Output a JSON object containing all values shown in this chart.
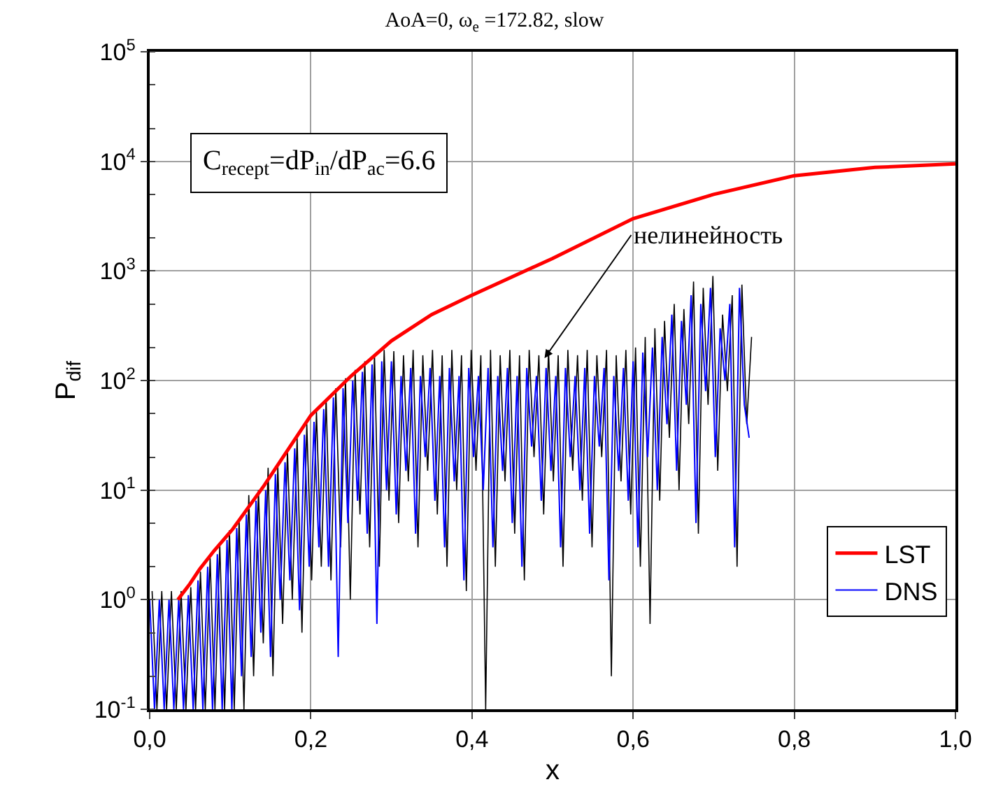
{
  "chart_data": {
    "type": "line",
    "title": "AoA=0, ω$_{e}$ =172.82, slow",
    "xlabel": "x",
    "ylabel": "P$_{dif}$",
    "log": "y",
    "grid": true,
    "legend": "bottom right",
    "xlim": [
      0,
      1
    ],
    "xticks": [
      {
        "value": 0,
        "label": "0,0"
      },
      {
        "value": 0.2,
        "label": "0,2"
      },
      {
        "value": 0.4,
        "label": "0,4"
      },
      {
        "value": 0.6,
        "label": "0,6"
      },
      {
        "value": 0.8,
        "label": "0,8"
      },
      {
        "value": 1,
        "label": "1,0"
      }
    ],
    "ylim": [
      0.1,
      100000
    ],
    "yticks": [
      {
        "value": 0.1,
        "label": "10$^{-1}$"
      },
      {
        "value": 1,
        "label": "10$^{0}$"
      },
      {
        "value": 10,
        "label": "10$^{1}$"
      },
      {
        "value": 100,
        "label": "10$^{2}$"
      },
      {
        "value": 1000,
        "label": "10$^{3}$"
      },
      {
        "value": 10000,
        "label": "10$^{4}$"
      },
      {
        "value": 100000,
        "label": "10$^{5}$"
      }
    ],
    "annotations": [
      "C$_{recept}$=dP$_{in}$/dP$_{ac}$=6.6",
      {
        "text": "нелинейность",
        "x": 0.49,
        "y": 160
      }
    ],
    "series": [
      {
        "color": "#000000",
        "x": [
          0.003,
          0.009,
          0.015,
          0.021,
          0.027,
          0.033,
          0.039,
          0.045,
          0.051,
          0.057,
          0.063,
          0.069,
          0.075,
          0.081,
          0.087,
          0.093,
          0.099,
          0.105,
          0.111,
          0.117,
          0.123,
          0.129,
          0.135,
          0.141,
          0.147,
          0.153,
          0.159,
          0.165,
          0.171,
          0.177,
          0.183,
          0.189,
          0.195,
          0.201,
          0.207,
          0.213,
          0.219,
          0.225,
          0.231,
          0.237,
          0.243,
          0.249,
          0.255,
          0.261,
          0.267,
          0.273,
          0.279,
          0.285,
          0.291,
          0.297,
          0.303,
          0.309,
          0.315,
          0.321,
          0.327,
          0.333,
          0.339,
          0.345,
          0.351,
          0.357,
          0.363,
          0.369,
          0.375,
          0.381,
          0.387,
          0.393,
          0.399,
          0.405,
          0.411,
          0.417,
          0.423,
          0.429,
          0.435,
          0.441,
          0.447,
          0.453,
          0.459,
          0.465,
          0.471,
          0.477,
          0.483,
          0.489,
          0.495,
          0.501,
          0.507,
          0.513,
          0.519,
          0.525,
          0.531,
          0.537,
          0.543,
          0.549,
          0.555,
          0.561,
          0.567,
          0.573,
          0.579,
          0.585,
          0.591,
          0.597,
          0.603,
          0.609,
          0.615,
          0.621,
          0.627,
          0.633,
          0.639,
          0.645,
          0.651,
          0.657,
          0.663,
          0.669,
          0.675,
          0.681,
          0.687,
          0.693,
          0.699,
          0.705,
          0.711,
          0.717,
          0.723,
          0.729,
          0.735,
          0.741,
          0.747
        ],
        "values": [
          1.2,
          0.1,
          1.2,
          0.1,
          1.2,
          0.1,
          1.2,
          0.1,
          1.3,
          0.1,
          1.8,
          0.1,
          2.4,
          0.1,
          3.2,
          0.1,
          4.3,
          0.1,
          5.5,
          0.1,
          9,
          0.2,
          10,
          0.4,
          16,
          0.2,
          17,
          0.6,
          23,
          1,
          30,
          0.5,
          40,
          1.5,
          52,
          2,
          68,
          1.5,
          85,
          3,
          105,
          1,
          125,
          6,
          150,
          3,
          175,
          2,
          190,
          8,
          185,
          5,
          170,
          12,
          190,
          3,
          170,
          15,
          190,
          6,
          170,
          2,
          190,
          10,
          170,
          1.2,
          190,
          15,
          170,
          0.1,
          190,
          2,
          170,
          12,
          190,
          4,
          170,
          1.5,
          190,
          20,
          170,
          6,
          190,
          12,
          170,
          2,
          190,
          15,
          170,
          8,
          190,
          3,
          170,
          20,
          190,
          0.2,
          170,
          12,
          190,
          6,
          200,
          2,
          250,
          0.6,
          300,
          8,
          350,
          30,
          500,
          10,
          450,
          40,
          800,
          4,
          700,
          60,
          900,
          15,
          400,
          80,
          600,
          2,
          750,
          40,
          250
        ]
      },
      {
        "name": "DNS",
        "color": "#0000ff",
        "x": [
          0,
          0.006,
          0.012,
          0.018,
          0.024,
          0.03,
          0.036,
          0.042,
          0.048,
          0.054,
          0.06,
          0.066,
          0.072,
          0.078,
          0.084,
          0.09,
          0.096,
          0.102,
          0.108,
          0.114,
          0.12,
          0.126,
          0.132,
          0.138,
          0.144,
          0.15,
          0.156,
          0.162,
          0.168,
          0.174,
          0.18,
          0.186,
          0.192,
          0.198,
          0.204,
          0.21,
          0.216,
          0.222,
          0.228,
          0.234,
          0.24,
          0.246,
          0.252,
          0.258,
          0.264,
          0.27,
          0.276,
          0.282,
          0.288,
          0.294,
          0.3,
          0.306,
          0.312,
          0.318,
          0.324,
          0.33,
          0.336,
          0.342,
          0.348,
          0.354,
          0.36,
          0.366,
          0.372,
          0.378,
          0.384,
          0.39,
          0.396,
          0.402,
          0.408,
          0.414,
          0.42,
          0.426,
          0.432,
          0.438,
          0.444,
          0.45,
          0.456,
          0.462,
          0.468,
          0.474,
          0.48,
          0.486,
          0.492,
          0.498,
          0.504,
          0.51,
          0.516,
          0.522,
          0.528,
          0.534,
          0.54,
          0.546,
          0.552,
          0.558,
          0.564,
          0.57,
          0.576,
          0.582,
          0.588,
          0.594,
          0.6,
          0.606,
          0.612,
          0.618,
          0.624,
          0.63,
          0.636,
          0.642,
          0.648,
          0.654,
          0.66,
          0.666,
          0.672,
          0.678,
          0.684,
          0.69,
          0.696,
          0.702,
          0.708,
          0.714,
          0.72,
          0.726,
          0.732,
          0.738,
          0.744
        ],
        "values": [
          1.0,
          0.1,
          1.0,
          0.1,
          1.0,
          0.1,
          1.0,
          0.1,
          1.1,
          0.1,
          1.5,
          0.1,
          2.0,
          0.1,
          2.6,
          0.1,
          3.5,
          0.1,
          4.5,
          0.2,
          6,
          0.3,
          8,
          0.5,
          10,
          0.3,
          14,
          1,
          18,
          1.5,
          24,
          0.8,
          32,
          2,
          42,
          3,
          55,
          2,
          70,
          0.3,
          85,
          5,
          100,
          8,
          120,
          4,
          140,
          0.6,
          150,
          10,
          150,
          6,
          110,
          15,
          130,
          4,
          110,
          20,
          130,
          8,
          110,
          3,
          130,
          12,
          110,
          1.5,
          130,
          20,
          110,
          10,
          130,
          3,
          110,
          15,
          130,
          5,
          110,
          2,
          130,
          25,
          110,
          8,
          130,
          15,
          110,
          3,
          130,
          20,
          110,
          10,
          130,
          4,
          110,
          25,
          130,
          1.5,
          110,
          15,
          130,
          8,
          150,
          3,
          180,
          20,
          200,
          10,
          250,
          40,
          400,
          15,
          350,
          60,
          600,
          5,
          500,
          80,
          700,
          20,
          300,
          100,
          500,
          3,
          700,
          60,
          30
        ]
      },
      {
        "name": "LST",
        "color": "#ff0000",
        "x": [
          0.035,
          0.05,
          0.062,
          0.08,
          0.103,
          0.142,
          0.2,
          0.25,
          0.3,
          0.35,
          0.4,
          0.5,
          0.6,
          0.7,
          0.8,
          0.9,
          1.0
        ],
        "values": [
          1.0,
          1.4,
          1.9,
          2.8,
          4.4,
          11,
          48,
          110,
          230,
          400,
          600,
          1300,
          3000,
          5000,
          7400,
          8800,
          9500
        ]
      }
    ]
  }
}
